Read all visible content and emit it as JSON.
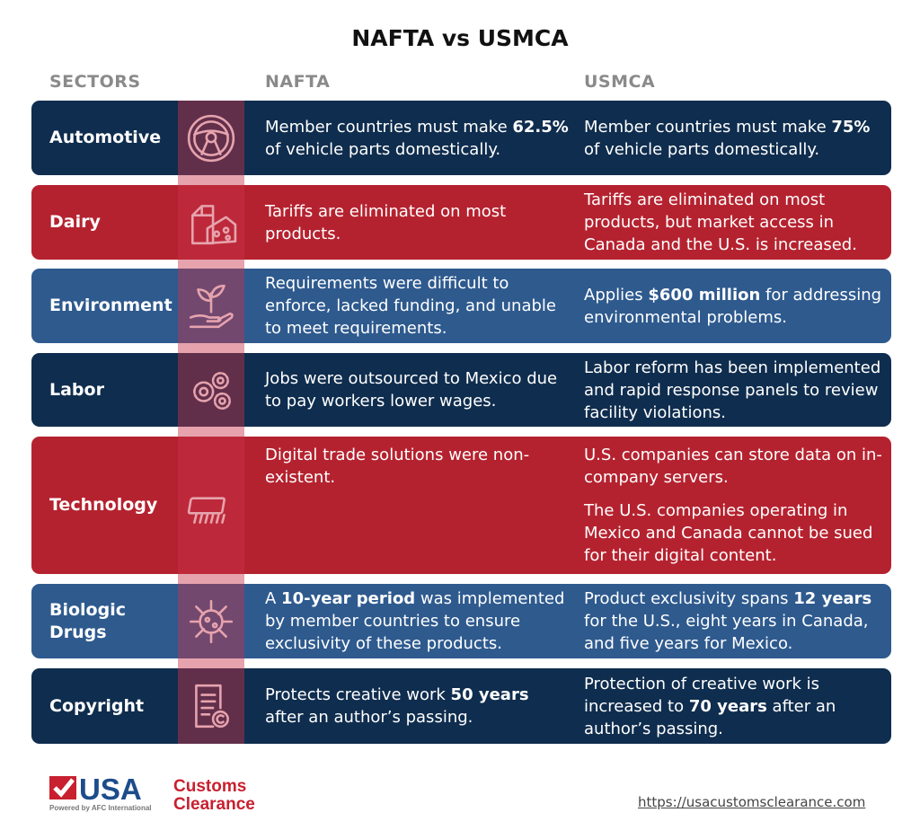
{
  "title": "NAFTA vs USMCA",
  "headers": {
    "sectors": "SECTORS",
    "nafta": "NAFTA",
    "usmca": "USMCA"
  },
  "colors": {
    "navy": "#0f2d4e",
    "red": "#b5222f",
    "blue": "#2e5a8e",
    "strip": "#e39aa3"
  },
  "rows": [
    {
      "sector": "Automotive",
      "icon": "steering-wheel-icon",
      "color": "navy",
      "nafta": [
        [
          {
            "t": "Member countries must make "
          },
          {
            "t": "62.5%",
            "b": true
          },
          {
            "t": " of vehicle parts domestically."
          }
        ]
      ],
      "usmca": [
        [
          {
            "t": "Member countries must make "
          },
          {
            "t": "75%",
            "b": true
          },
          {
            "t": " of vehicle parts domestically."
          }
        ]
      ]
    },
    {
      "sector": "Dairy",
      "icon": "milk-cheese-icon",
      "color": "red",
      "nafta": [
        [
          {
            "t": "Tariffs are eliminated on most products."
          }
        ]
      ],
      "usmca": [
        [
          {
            "t": "Tariffs are eliminated on most products, but market access in Canada and the U.S. is increased."
          }
        ]
      ]
    },
    {
      "sector": "Environment",
      "icon": "plant-hand-icon",
      "color": "blue",
      "nafta": [
        [
          {
            "t": "Requirements were difficult to enforce, lacked funding, and unable to meet requirements."
          }
        ]
      ],
      "usmca": [
        [
          {
            "t": "Applies "
          },
          {
            "t": "$600 million",
            "b": true
          },
          {
            "t": " for addressing environmental problems."
          }
        ]
      ]
    },
    {
      "sector": "Labor",
      "icon": "gears-icon",
      "color": "navy",
      "nafta": [
        [
          {
            "t": "Jobs were outsourced to Mexico due to pay workers lower wages."
          }
        ]
      ],
      "usmca": [
        [
          {
            "t": "Labor reform has been implemented and rapid response panels to review facility violations."
          }
        ]
      ]
    },
    {
      "sector": "Technology",
      "icon": "microchip-icon",
      "color": "red",
      "nafta": [
        [
          {
            "t": "Digital trade solutions were non-existent."
          }
        ]
      ],
      "usmca": [
        [
          {
            "t": "U.S. companies can store data on in-company servers."
          }
        ],
        [
          {
            "t": "The U.S. companies operating in Mexico and Canada cannot be sued for their digital content."
          }
        ]
      ]
    },
    {
      "sector": "Biologic Drugs",
      "icon": "virus-icon",
      "color": "blue",
      "nafta": [
        [
          {
            "t": "A "
          },
          {
            "t": "10-year period",
            "b": true
          },
          {
            "t": " was implemented by member countries to ensure exclusivity of these products."
          }
        ]
      ],
      "usmca": [
        [
          {
            "t": "Product exclusivity spans "
          },
          {
            "t": "12 years",
            "b": true
          },
          {
            "t": " for the U.S., eight years in Canada, and five years for Mexico."
          }
        ]
      ]
    },
    {
      "sector": "Copyright",
      "icon": "copyright-document-icon",
      "color": "navy",
      "nafta": [
        [
          {
            "t": "Protects creative work "
          },
          {
            "t": "50 years",
            "b": true
          },
          {
            "t": " after an author’s passing."
          }
        ]
      ],
      "usmca": [
        [
          {
            "t": "Protection of creative work is increased to "
          },
          {
            "t": "70 years",
            "b": true
          },
          {
            "t": " after an author’s passing."
          }
        ]
      ]
    }
  ],
  "footer": {
    "logo_usa": "USA",
    "logo_customs": "Customs",
    "logo_clearance": "Clearance",
    "logo_powered": "Powered by AFC International",
    "url": "https://usacustomsclearance.com"
  }
}
